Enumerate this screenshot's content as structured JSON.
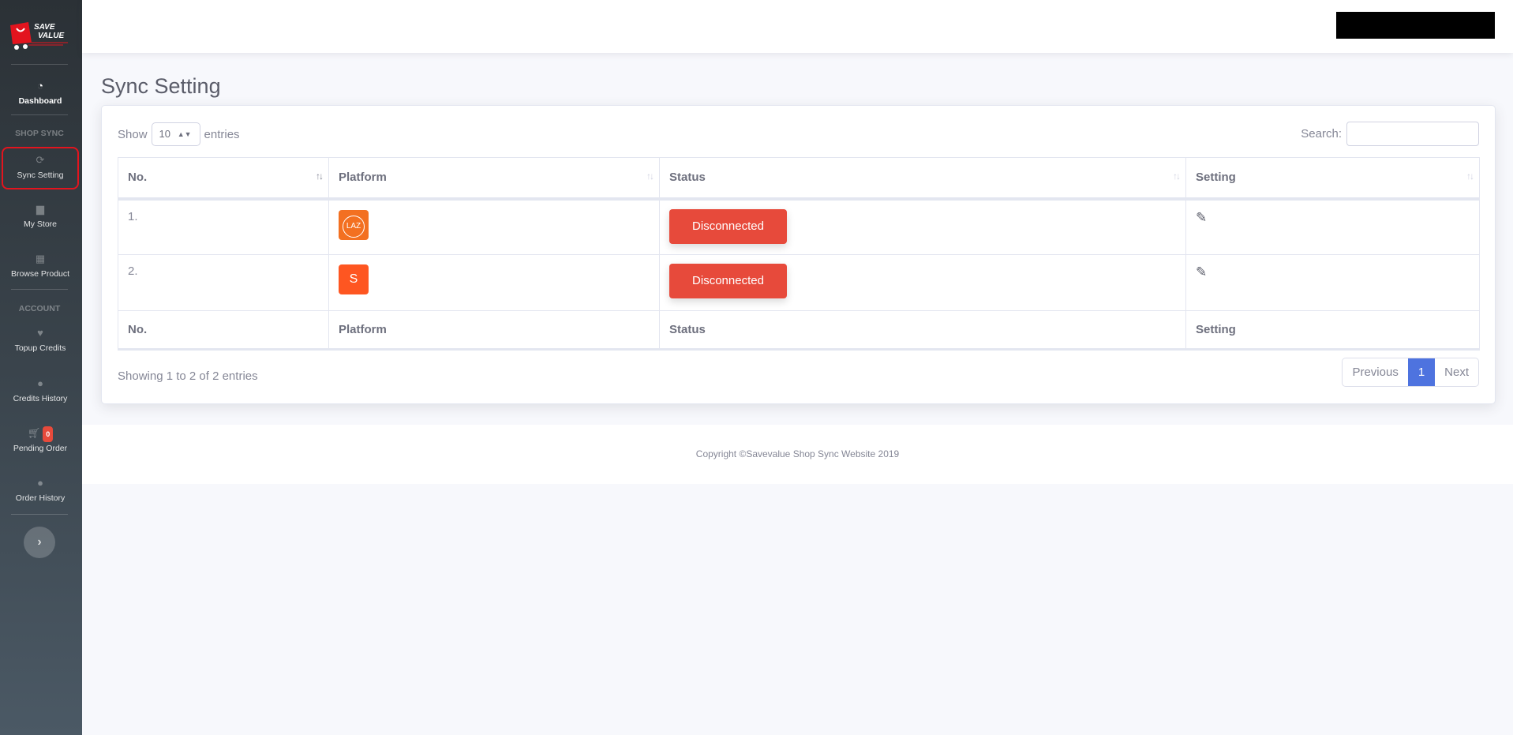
{
  "brand": {
    "logo_text": "SAVE VALUE",
    "logo_sub": "Shopping Platform",
    "accent": "#e3141e"
  },
  "sidebar": {
    "dashboard": "Dashboard",
    "section_shop": "SHOP SYNC",
    "sync_setting": "Sync Setting",
    "my_store": "My Store",
    "browse_product": "Browse Product",
    "section_account": "ACCOUNT",
    "topup_credits": "Topup Credits",
    "credits_history": "Credits History",
    "pending_order": "Pending Order",
    "pending_badge": "0",
    "order_history": "Order History",
    "toggle": "›"
  },
  "page": {
    "title": "Sync Setting"
  },
  "table_controls": {
    "show": "Show",
    "entries_value": "10",
    "entries": "entries",
    "search_label": "Search:",
    "search_value": ""
  },
  "table": {
    "headers": [
      "No.",
      "Platform",
      "Status",
      "Setting"
    ],
    "rows": [
      {
        "no": "1.",
        "platform": "Lazada",
        "platform_logo_text": "LAZ",
        "platform_color": "#f37021",
        "status": "Disconnected"
      },
      {
        "no": "2.",
        "platform": "Shopee",
        "platform_logo_text": "S",
        "platform_color": "#fe5621",
        "status": "Disconnected"
      }
    ]
  },
  "info": "Showing 1 to 2 of 2 entries",
  "pagination": {
    "previous": "Previous",
    "current": "1",
    "next": "Next"
  },
  "footer": {
    "copyright": "Copyright ©Savevalue Shop Sync Website 2019"
  }
}
